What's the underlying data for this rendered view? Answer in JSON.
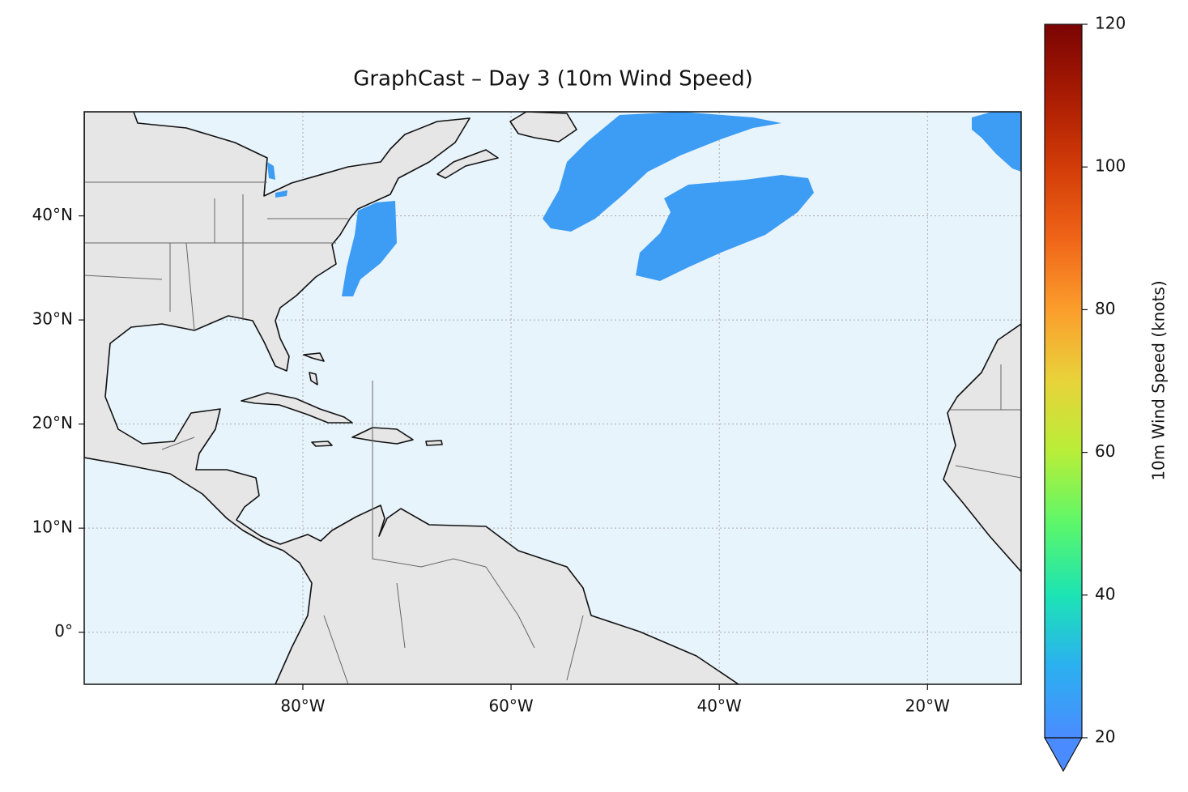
{
  "chart_data": {
    "type": "map",
    "title": "GraphCast – Day 3 (10m Wind Speed)",
    "xlim": [
      -101,
      -11
    ],
    "ylim": [
      -5,
      50
    ],
    "xticks": [
      {
        "value": -80,
        "label": "80°W"
      },
      {
        "value": -60,
        "label": "60°W"
      },
      {
        "value": -40,
        "label": "40°W"
      },
      {
        "value": -20,
        "label": "20°W"
      }
    ],
    "yticks": [
      {
        "value": 0,
        "label": "0°"
      },
      {
        "value": 10,
        "label": "10°N"
      },
      {
        "value": 20,
        "label": "20°N"
      },
      {
        "value": 30,
        "label": "30°N"
      },
      {
        "value": 40,
        "label": "40°N"
      }
    ],
    "grid": true,
    "colorbar": {
      "label": "10m Wind Speed (knots)",
      "lim": [
        20,
        120
      ],
      "ticks": [
        20,
        40,
        60,
        80,
        100,
        120
      ],
      "extend": "min"
    }
  }
}
